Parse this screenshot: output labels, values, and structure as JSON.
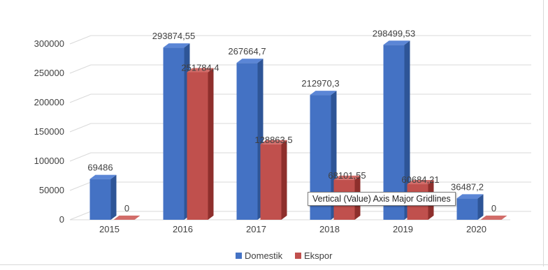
{
  "colors": {
    "domestik_front": "#4472c4",
    "domestik_side": "#2e5597",
    "domestik_top": "#5b86d6",
    "ekspor_front": "#c0504d",
    "ekspor_side": "#8e2f2c",
    "ekspor_top": "#d26c69",
    "grid": "#d9d9d9",
    "text": "#404040"
  },
  "tooltip": {
    "text": "Vertical (Value) Axis Major Gridlines"
  },
  "chart_data": {
    "type": "bar",
    "variant": "3d-clustered-column",
    "categories": [
      "2015",
      "2016",
      "2017",
      "2018",
      "2019",
      "2020"
    ],
    "series": [
      {
        "name": "Domestik",
        "values": [
          69486,
          293874.55,
          267664.7,
          212970.3,
          298499.53,
          36487.2
        ],
        "labels": [
          "69486",
          "293874,55",
          "267664,7",
          "212970,3",
          "298499,53",
          "36487,2"
        ],
        "color": "#4472c4"
      },
      {
        "name": "Ekspor",
        "values": [
          0,
          251784.4,
          128863.5,
          68101.55,
          60684.21,
          0
        ],
        "labels": [
          "0",
          "251784,4",
          "128863,5",
          "68101,55",
          "60684,21",
          "0"
        ],
        "color": "#c0504d"
      }
    ],
    "yticks": [
      "0",
      "50000",
      "100000",
      "150000",
      "200000",
      "250000",
      "300000"
    ],
    "ylim": [
      0,
      300000
    ],
    "grid": true,
    "legend": "bottom"
  }
}
